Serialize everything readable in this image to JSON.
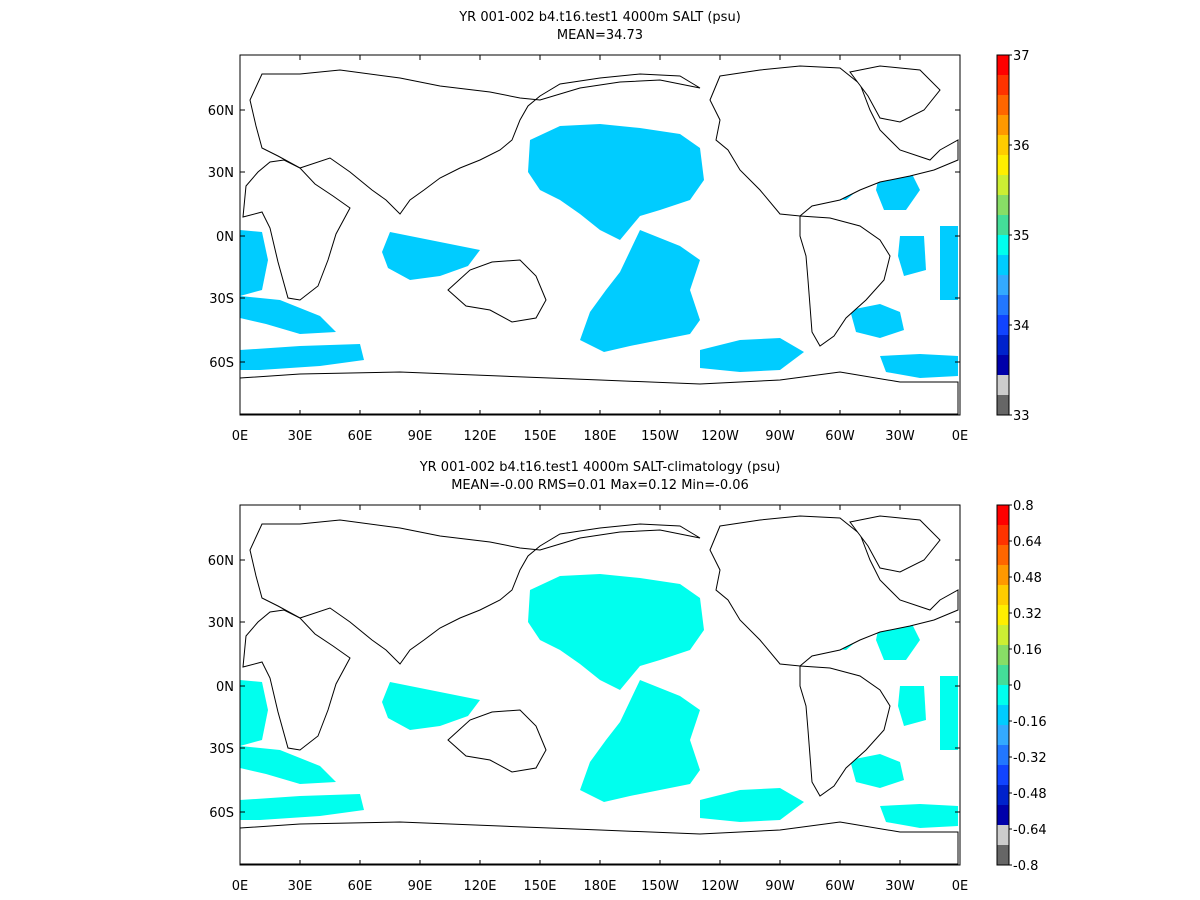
{
  "panels": [
    {
      "title_line1": "YR 001-002 b4.t16.test1 4000m SALT (psu)",
      "title_line2": "MEAN=34.73",
      "x_ticks": [
        "0E",
        "30E",
        "60E",
        "90E",
        "120E",
        "150E",
        "180E",
        "150W",
        "120W",
        "90W",
        "60W",
        "30W",
        "0E"
      ],
      "y_ticks": [
        "60N",
        "30N",
        "0N",
        "30S",
        "60S"
      ],
      "colorbar": {
        "labels": [
          "37",
          "36",
          "35",
          "34",
          "33"
        ],
        "colors": [
          "#ff0000",
          "#ff3300",
          "#ff6600",
          "#ff9900",
          "#ffcc00",
          "#ffee00",
          "#ccee33",
          "#88dd66",
          "#44dd99",
          "#00ffee",
          "#00ccff",
          "#33aaff",
          "#2277ff",
          "#1144ff",
          "#0022cc",
          "#0000aa",
          "#cccccc",
          "#666666"
        ]
      },
      "ocean_fill": "#00ccff"
    },
    {
      "title_line1": "YR 001-002 b4.t16.test1 4000m SALT-climatology (psu)",
      "title_line2": "MEAN=-0.00   RMS=0.01   Max=0.12   Min=-0.06",
      "x_ticks": [
        "0E",
        "30E",
        "60E",
        "90E",
        "120E",
        "150E",
        "180E",
        "150W",
        "120W",
        "90W",
        "60W",
        "30W",
        "0E"
      ],
      "y_ticks": [
        "60N",
        "30N",
        "0N",
        "30S",
        "60S"
      ],
      "colorbar": {
        "labels": [
          "0.8",
          "0.64",
          "0.48",
          "0.32",
          "0.16",
          "0",
          "-0.16",
          "-0.32",
          "-0.48",
          "-0.64",
          "-0.8"
        ],
        "colors": [
          "#ff0000",
          "#ff3300",
          "#ff6600",
          "#ff9900",
          "#ffcc00",
          "#ffee00",
          "#ccee33",
          "#88dd66",
          "#44dd99",
          "#00ffee",
          "#00ccff",
          "#33aaff",
          "#2277ff",
          "#1144ff",
          "#0022cc",
          "#0000aa",
          "#cccccc",
          "#666666"
        ]
      },
      "ocean_fill": "#00ffee"
    }
  ]
}
